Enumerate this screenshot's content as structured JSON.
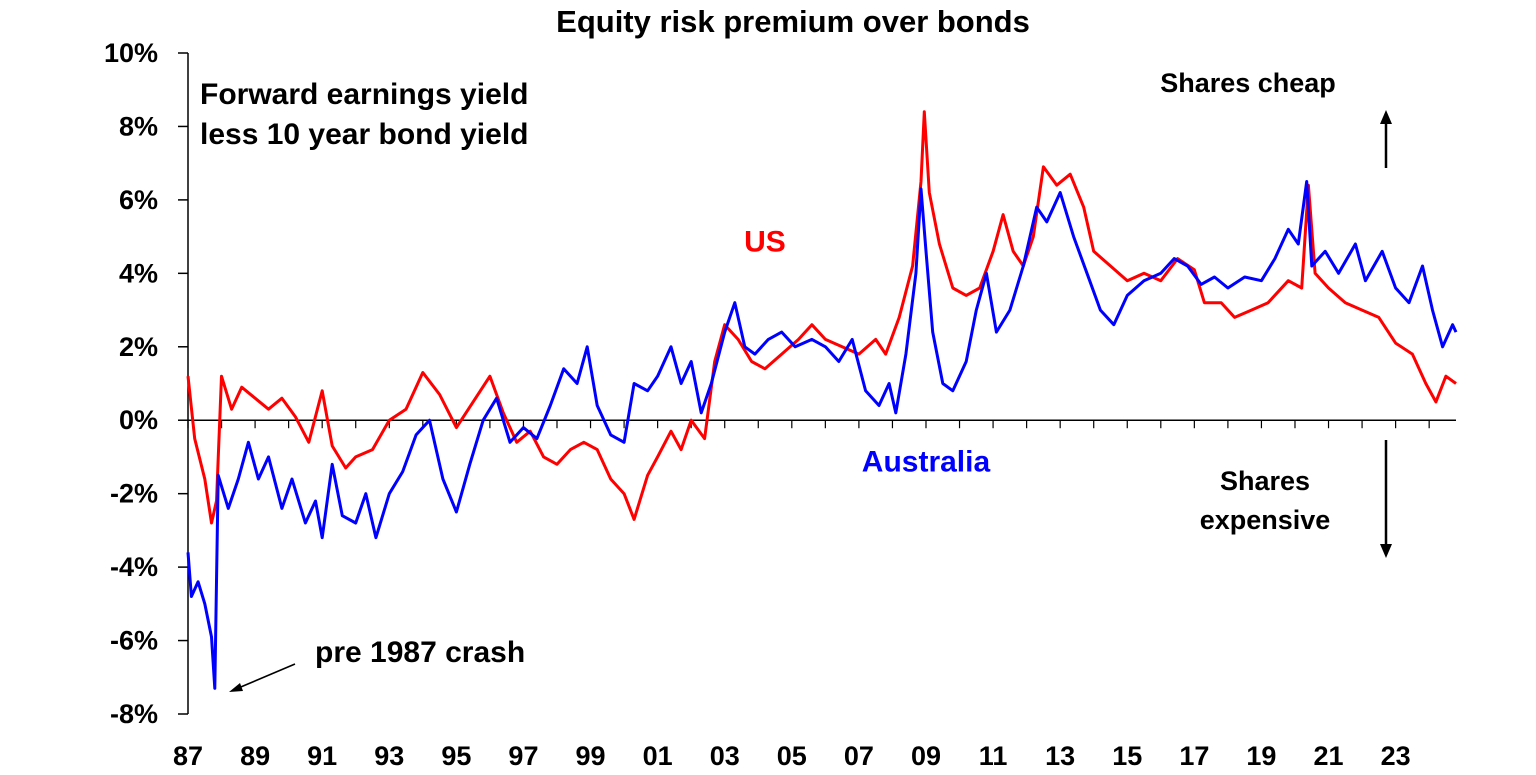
{
  "chart_data": {
    "type": "line",
    "title": "Equity risk premium over bonds",
    "subtitle_lines": [
      "Forward earnings yield",
      "less 10 year bond yield"
    ],
    "xlabel": "",
    "ylabel": "",
    "x_ticks": [
      "87",
      "89",
      "91",
      "93",
      "95",
      "97",
      "99",
      "01",
      "03",
      "05",
      "07",
      "09",
      "11",
      "13",
      "15",
      "17",
      "19",
      "21",
      "23"
    ],
    "y_ticks": [
      "10%",
      "8%",
      "6%",
      "4%",
      "2%",
      "0%",
      "-2%",
      "-4%",
      "-6%",
      "-8%"
    ],
    "ylim": [
      -8,
      10
    ],
    "xlim": [
      1987.0,
      2024.8
    ],
    "grid": false,
    "annotations": {
      "shares_cheap": "Shares cheap",
      "shares_expensive_line1": "Shares",
      "shares_expensive_line2": "expensive",
      "crash": "pre 1987 crash"
    },
    "series": [
      {
        "name": "US",
        "color": "#ff0000",
        "points": [
          [
            1987.0,
            1.2
          ],
          [
            1987.2,
            -0.5
          ],
          [
            1987.5,
            -1.6
          ],
          [
            1987.7,
            -2.8
          ],
          [
            1987.85,
            -2.2
          ],
          [
            1988.0,
            1.2
          ],
          [
            1988.3,
            0.3
          ],
          [
            1988.6,
            0.9
          ],
          [
            1989.0,
            0.6
          ],
          [
            1989.4,
            0.3
          ],
          [
            1989.8,
            0.6
          ],
          [
            1990.2,
            0.1
          ],
          [
            1990.6,
            -0.6
          ],
          [
            1991.0,
            0.8
          ],
          [
            1991.3,
            -0.7
          ],
          [
            1991.7,
            -1.3
          ],
          [
            1992.0,
            -1.0
          ],
          [
            1992.5,
            -0.8
          ],
          [
            1993.0,
            0.0
          ],
          [
            1993.5,
            0.3
          ],
          [
            1994.0,
            1.3
          ],
          [
            1994.5,
            0.7
          ],
          [
            1995.0,
            -0.2
          ],
          [
            1995.5,
            0.5
          ],
          [
            1996.0,
            1.2
          ],
          [
            1996.4,
            0.2
          ],
          [
            1996.8,
            -0.6
          ],
          [
            1997.2,
            -0.3
          ],
          [
            1997.6,
            -1.0
          ],
          [
            1998.0,
            -1.2
          ],
          [
            1998.4,
            -0.8
          ],
          [
            1998.8,
            -0.6
          ],
          [
            1999.2,
            -0.8
          ],
          [
            1999.6,
            -1.6
          ],
          [
            2000.0,
            -2.0
          ],
          [
            2000.3,
            -2.7
          ],
          [
            2000.7,
            -1.5
          ],
          [
            2001.0,
            -1.0
          ],
          [
            2001.4,
            -0.3
          ],
          [
            2001.7,
            -0.8
          ],
          [
            2002.0,
            0.0
          ],
          [
            2002.4,
            -0.5
          ],
          [
            2002.7,
            1.6
          ],
          [
            2003.0,
            2.6
          ],
          [
            2003.4,
            2.2
          ],
          [
            2003.8,
            1.6
          ],
          [
            2004.2,
            1.4
          ],
          [
            2004.7,
            1.8
          ],
          [
            2005.2,
            2.2
          ],
          [
            2005.6,
            2.6
          ],
          [
            2006.0,
            2.2
          ],
          [
            2006.5,
            2.0
          ],
          [
            2007.0,
            1.8
          ],
          [
            2007.5,
            2.2
          ],
          [
            2007.8,
            1.8
          ],
          [
            2008.2,
            2.8
          ],
          [
            2008.6,
            4.2
          ],
          [
            2008.85,
            6.5
          ],
          [
            2008.95,
            8.4
          ],
          [
            2009.1,
            6.2
          ],
          [
            2009.4,
            4.8
          ],
          [
            2009.8,
            3.6
          ],
          [
            2010.2,
            3.4
          ],
          [
            2010.6,
            3.6
          ],
          [
            2011.0,
            4.6
          ],
          [
            2011.3,
            5.6
          ],
          [
            2011.6,
            4.6
          ],
          [
            2011.9,
            4.2
          ],
          [
            2012.2,
            5.0
          ],
          [
            2012.5,
            6.9
          ],
          [
            2012.9,
            6.4
          ],
          [
            2013.3,
            6.7
          ],
          [
            2013.7,
            5.8
          ],
          [
            2014.0,
            4.6
          ],
          [
            2014.5,
            4.2
          ],
          [
            2015.0,
            3.8
          ],
          [
            2015.5,
            4.0
          ],
          [
            2016.0,
            3.8
          ],
          [
            2016.5,
            4.4
          ],
          [
            2017.0,
            4.1
          ],
          [
            2017.3,
            3.2
          ],
          [
            2017.8,
            3.2
          ],
          [
            2018.2,
            2.8
          ],
          [
            2018.7,
            3.0
          ],
          [
            2019.2,
            3.2
          ],
          [
            2019.8,
            3.8
          ],
          [
            2020.2,
            3.6
          ],
          [
            2020.4,
            6.4
          ],
          [
            2020.6,
            4.0
          ],
          [
            2021.0,
            3.6
          ],
          [
            2021.5,
            3.2
          ],
          [
            2022.0,
            3.0
          ],
          [
            2022.5,
            2.8
          ],
          [
            2023.0,
            2.1
          ],
          [
            2023.5,
            1.8
          ],
          [
            2023.9,
            1.0
          ],
          [
            2024.2,
            0.5
          ],
          [
            2024.5,
            1.2
          ],
          [
            2024.8,
            1.0
          ]
        ]
      },
      {
        "name": "Australia",
        "color": "#0000ff",
        "points": [
          [
            1987.0,
            -3.6
          ],
          [
            1987.1,
            -4.8
          ],
          [
            1987.3,
            -4.4
          ],
          [
            1987.5,
            -5.0
          ],
          [
            1987.7,
            -5.9
          ],
          [
            1987.8,
            -7.3
          ],
          [
            1987.9,
            -1.5
          ],
          [
            1988.2,
            -2.4
          ],
          [
            1988.5,
            -1.6
          ],
          [
            1988.8,
            -0.6
          ],
          [
            1989.1,
            -1.6
          ],
          [
            1989.4,
            -1.0
          ],
          [
            1989.8,
            -2.4
          ],
          [
            1990.1,
            -1.6
          ],
          [
            1990.5,
            -2.8
          ],
          [
            1990.8,
            -2.2
          ],
          [
            1991.0,
            -3.2
          ],
          [
            1991.3,
            -1.2
          ],
          [
            1991.6,
            -2.6
          ],
          [
            1992.0,
            -2.8
          ],
          [
            1992.3,
            -2.0
          ],
          [
            1992.6,
            -3.2
          ],
          [
            1993.0,
            -2.0
          ],
          [
            1993.4,
            -1.4
          ],
          [
            1993.8,
            -0.4
          ],
          [
            1994.2,
            0.0
          ],
          [
            1994.6,
            -1.6
          ],
          [
            1995.0,
            -2.5
          ],
          [
            1995.4,
            -1.2
          ],
          [
            1995.8,
            0.0
          ],
          [
            1996.2,
            0.6
          ],
          [
            1996.6,
            -0.6
          ],
          [
            1997.0,
            -0.2
          ],
          [
            1997.4,
            -0.5
          ],
          [
            1997.8,
            0.4
          ],
          [
            1998.2,
            1.4
          ],
          [
            1998.6,
            1.0
          ],
          [
            1998.9,
            2.0
          ],
          [
            1999.2,
            0.4
          ],
          [
            1999.6,
            -0.4
          ],
          [
            2000.0,
            -0.6
          ],
          [
            2000.3,
            1.0
          ],
          [
            2000.7,
            0.8
          ],
          [
            2001.0,
            1.2
          ],
          [
            2001.4,
            2.0
          ],
          [
            2001.7,
            1.0
          ],
          [
            2002.0,
            1.6
          ],
          [
            2002.3,
            0.2
          ],
          [
            2002.6,
            1.0
          ],
          [
            2003.0,
            2.4
          ],
          [
            2003.3,
            3.2
          ],
          [
            2003.6,
            2.0
          ],
          [
            2003.9,
            1.8
          ],
          [
            2004.3,
            2.2
          ],
          [
            2004.7,
            2.4
          ],
          [
            2005.1,
            2.0
          ],
          [
            2005.6,
            2.2
          ],
          [
            2006.0,
            2.0
          ],
          [
            2006.4,
            1.6
          ],
          [
            2006.8,
            2.2
          ],
          [
            2007.2,
            0.8
          ],
          [
            2007.6,
            0.4
          ],
          [
            2007.9,
            1.0
          ],
          [
            2008.1,
            0.2
          ],
          [
            2008.4,
            1.8
          ],
          [
            2008.7,
            4.0
          ],
          [
            2008.85,
            6.3
          ],
          [
            2009.0,
            4.6
          ],
          [
            2009.2,
            2.4
          ],
          [
            2009.5,
            1.0
          ],
          [
            2009.8,
            0.8
          ],
          [
            2010.2,
            1.6
          ],
          [
            2010.5,
            3.0
          ],
          [
            2010.8,
            4.0
          ],
          [
            2011.1,
            2.4
          ],
          [
            2011.5,
            3.0
          ],
          [
            2011.9,
            4.2
          ],
          [
            2012.3,
            5.8
          ],
          [
            2012.6,
            5.4
          ],
          [
            2013.0,
            6.2
          ],
          [
            2013.4,
            5.0
          ],
          [
            2013.8,
            4.0
          ],
          [
            2014.2,
            3.0
          ],
          [
            2014.6,
            2.6
          ],
          [
            2015.0,
            3.4
          ],
          [
            2015.5,
            3.8
          ],
          [
            2016.0,
            4.0
          ],
          [
            2016.4,
            4.4
          ],
          [
            2016.8,
            4.2
          ],
          [
            2017.2,
            3.7
          ],
          [
            2017.6,
            3.9
          ],
          [
            2018.0,
            3.6
          ],
          [
            2018.5,
            3.9
          ],
          [
            2019.0,
            3.8
          ],
          [
            2019.4,
            4.4
          ],
          [
            2019.8,
            5.2
          ],
          [
            2020.1,
            4.8
          ],
          [
            2020.35,
            6.5
          ],
          [
            2020.5,
            4.2
          ],
          [
            2020.9,
            4.6
          ],
          [
            2021.3,
            4.0
          ],
          [
            2021.8,
            4.8
          ],
          [
            2022.1,
            3.8
          ],
          [
            2022.6,
            4.6
          ],
          [
            2023.0,
            3.6
          ],
          [
            2023.4,
            3.2
          ],
          [
            2023.8,
            4.2
          ],
          [
            2024.1,
            3.0
          ],
          [
            2024.4,
            2.0
          ],
          [
            2024.7,
            2.6
          ],
          [
            2024.8,
            2.4
          ]
        ]
      }
    ]
  }
}
